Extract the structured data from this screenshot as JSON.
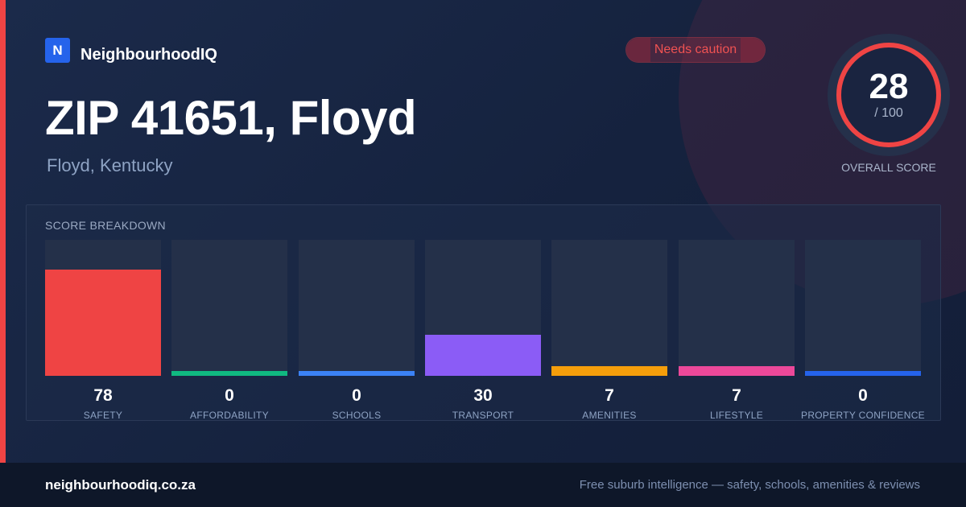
{
  "brand": {
    "logo_letter": "N",
    "name": "NeighbourhoodIQ"
  },
  "badge": {
    "label": "Needs caution",
    "color": "#ef4444"
  },
  "header": {
    "title": "ZIP 41651, Floyd",
    "subtitle": "Floyd, Kentucky"
  },
  "overall": {
    "score": "28",
    "max_label": "/ 100",
    "label": "OVERALL SCORE",
    "ring_color": "#ef4444"
  },
  "breakdown": {
    "title": "SCORE BREAKDOWN",
    "items": [
      {
        "label": "SAFETY",
        "value": "78",
        "fraction": 0.78,
        "color": "#ef4444"
      },
      {
        "label": "AFFORDABILITY",
        "value": "0",
        "fraction": 0.0,
        "color": "#10b981"
      },
      {
        "label": "SCHOOLS",
        "value": "0",
        "fraction": 0.0,
        "color": "#3b82f6"
      },
      {
        "label": "TRANSPORT",
        "value": "30",
        "fraction": 0.3,
        "color": "#8b5cf6"
      },
      {
        "label": "AMENITIES",
        "value": "7",
        "fraction": 0.07,
        "color": "#f59e0b"
      },
      {
        "label": "LIFESTYLE",
        "value": "7",
        "fraction": 0.07,
        "color": "#ec4899"
      },
      {
        "label": "PROPERTY CONFIDENCE",
        "value": "0",
        "fraction": 0.0,
        "color": "#2563eb"
      }
    ]
  },
  "footer": {
    "domain": "neighbourhoodiq.co.za",
    "tagline": "Free suburb intelligence — safety, schools, amenities & reviews"
  }
}
